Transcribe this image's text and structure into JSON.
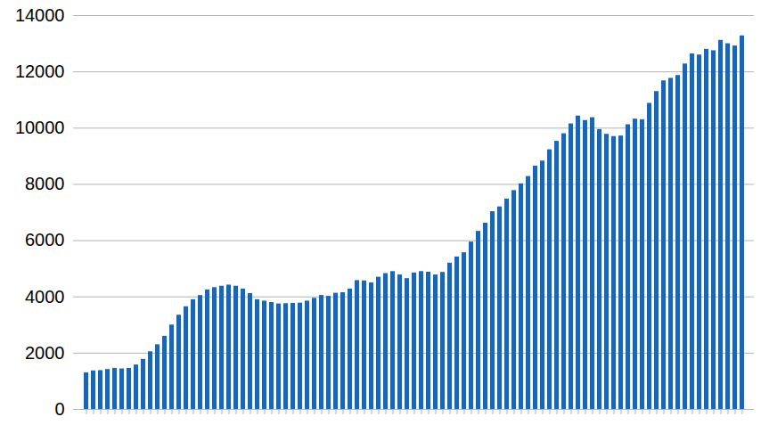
{
  "chart_data": {
    "type": "bar",
    "categories": [
      null,
      null,
      null,
      null,
      null,
      null,
      null,
      null,
      null,
      null,
      null,
      null,
      null,
      null,
      null,
      null,
      null,
      null,
      null,
      null,
      null,
      null,
      null,
      null,
      null,
      null,
      null,
      null,
      null,
      null,
      null,
      null,
      null,
      null,
      null,
      null,
      null,
      null,
      null,
      null,
      null,
      null,
      null,
      null,
      null,
      null,
      null,
      null,
      null,
      null,
      null,
      null,
      null,
      null,
      null,
      null,
      null,
      null,
      null,
      null,
      null,
      null,
      null,
      null,
      null,
      null,
      null,
      null,
      null,
      null,
      null,
      null,
      null,
      null,
      null,
      null,
      null,
      null,
      null,
      null,
      null,
      null,
      null,
      null,
      null,
      null,
      null,
      null,
      null,
      null,
      null,
      null,
      null
    ],
    "values": [
      1300,
      1370,
      1380,
      1420,
      1460,
      1440,
      1460,
      1580,
      1780,
      2050,
      2300,
      2600,
      3000,
      3350,
      3650,
      3900,
      4050,
      4250,
      4330,
      4380,
      4420,
      4380,
      4280,
      4120,
      3900,
      3850,
      3800,
      3750,
      3760,
      3770,
      3780,
      3850,
      3950,
      4050,
      4020,
      4130,
      4150,
      4280,
      4580,
      4570,
      4500,
      4700,
      4830,
      4900,
      4780,
      4650,
      4850,
      4900,
      4880,
      4780,
      4870,
      5200,
      5420,
      5570,
      5950,
      6330,
      6620,
      7030,
      7200,
      7480,
      7780,
      8020,
      8280,
      8650,
      8830,
      9230,
      9530,
      9800,
      10150,
      10430,
      10270,
      10370,
      9950,
      9780,
      9700,
      9720,
      10120,
      10320,
      10300,
      10880,
      11300,
      11680,
      11770,
      11870,
      12280,
      12640,
      12600,
      12800,
      12750,
      13120,
      13000,
      12920,
      13280
    ],
    "color": "#1e64b4",
    "ylim": [
      0,
      14000
    ],
    "yticks": [
      0,
      2000,
      4000,
      6000,
      8000,
      10000,
      12000,
      14000
    ],
    "grid": true,
    "tick_labels": "y"
  }
}
